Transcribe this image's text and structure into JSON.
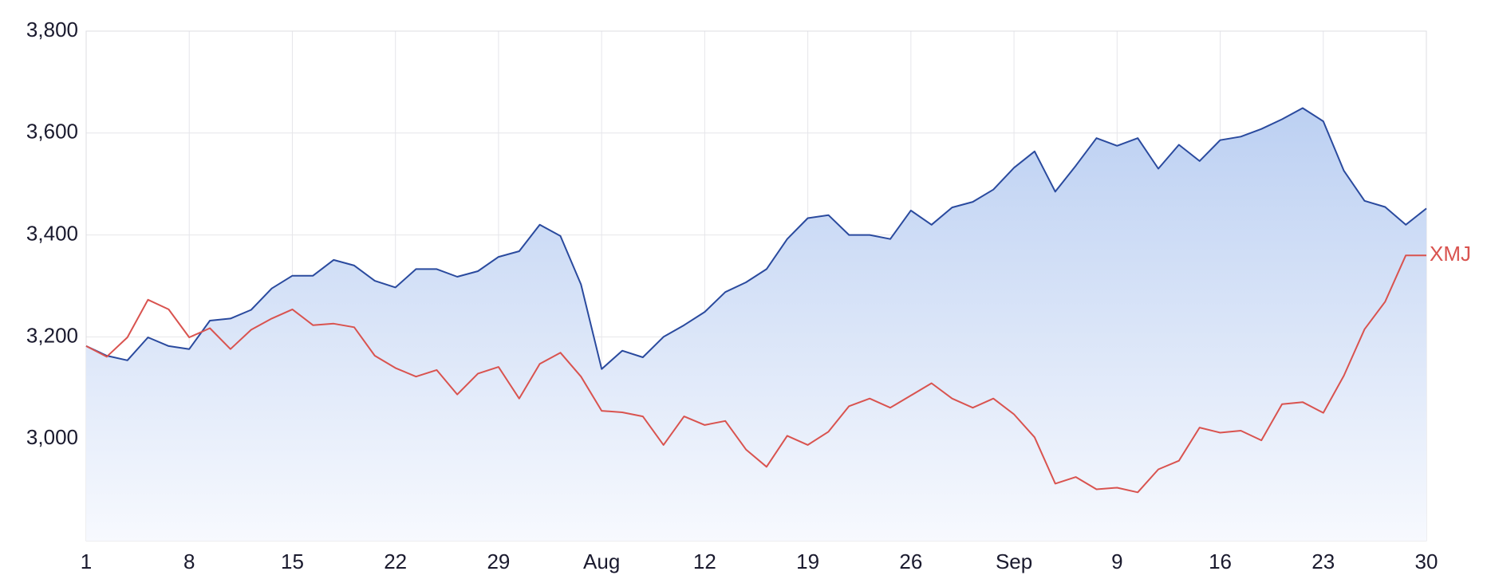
{
  "chart_data": {
    "type": "line",
    "categories": [
      "1",
      null,
      null,
      null,
      null,
      "8",
      null,
      null,
      null,
      null,
      "15",
      null,
      null,
      null,
      null,
      "22",
      null,
      null,
      null,
      null,
      "29",
      null,
      null,
      null,
      null,
      "Aug",
      null,
      null,
      null,
      null,
      "12",
      null,
      null,
      null,
      null,
      "19",
      null,
      null,
      null,
      null,
      "26",
      null,
      null,
      null,
      null,
      "Sep",
      null,
      null,
      null,
      null,
      "9",
      null,
      null,
      null,
      null,
      "16",
      null,
      null,
      null,
      null,
      "23",
      null,
      null,
      null,
      null,
      "30"
    ],
    "series": [
      {
        "color": "#2a4a9e",
        "area": true,
        "area_colors": [
          "#bcd0f2",
          "#f7f9fe"
        ],
        "values": [
          3182,
          3163,
          3154,
          3199,
          3182,
          3176,
          3232,
          3236,
          3253,
          3295,
          3320,
          3320,
          3351,
          3340,
          3310,
          3297,
          3333,
          3333,
          3318,
          3329,
          3357,
          3368,
          3420,
          3398,
          3303,
          3137,
          3173,
          3160,
          3200,
          3223,
          3249,
          3288,
          3307,
          3333,
          3392,
          3433,
          3439,
          3400,
          3400,
          3392,
          3448,
          3420,
          3454,
          3465,
          3489,
          3532,
          3564,
          3485,
          3536,
          3590,
          3575,
          3590,
          3530,
          3577,
          3545,
          3586,
          3593,
          3608,
          3627,
          3649,
          3623,
          3526,
          3467,
          3455,
          3420,
          3452
        ]
      },
      {
        "name": "XMJ",
        "color": "#d9534f",
        "values": [
          3182,
          3161,
          3199,
          3273,
          3254,
          3199,
          3217,
          3176,
          3214,
          3236,
          3254,
          3223,
          3226,
          3219,
          3163,
          3139,
          3122,
          3135,
          3087,
          3128,
          3141,
          3079,
          3147,
          3169,
          3122,
          3055,
          3052,
          3044,
          2988,
          3044,
          3027,
          3035,
          2979,
          2945,
          3006,
          2988,
          3014,
          3064,
          3079,
          3061,
          3085,
          3109,
          3079,
          3061,
          3079,
          3048,
          3003,
          2912,
          2925,
          2901,
          2904,
          2895,
          2940,
          2957,
          3022,
          3012,
          3016,
          2997,
          3068,
          3072,
          3051,
          3124,
          3215,
          3269,
          3360,
          3360
        ]
      }
    ],
    "ylim": [
      2800,
      3800
    ],
    "yticks": [
      {
        "value": 3000,
        "label": "3,000"
      },
      {
        "value": 3200,
        "label": "3,200"
      },
      {
        "value": 3400,
        "label": "3,400"
      },
      {
        "value": 3600,
        "label": "3,600"
      },
      {
        "value": 3800,
        "label": "3,800"
      }
    ],
    "grid": true
  }
}
